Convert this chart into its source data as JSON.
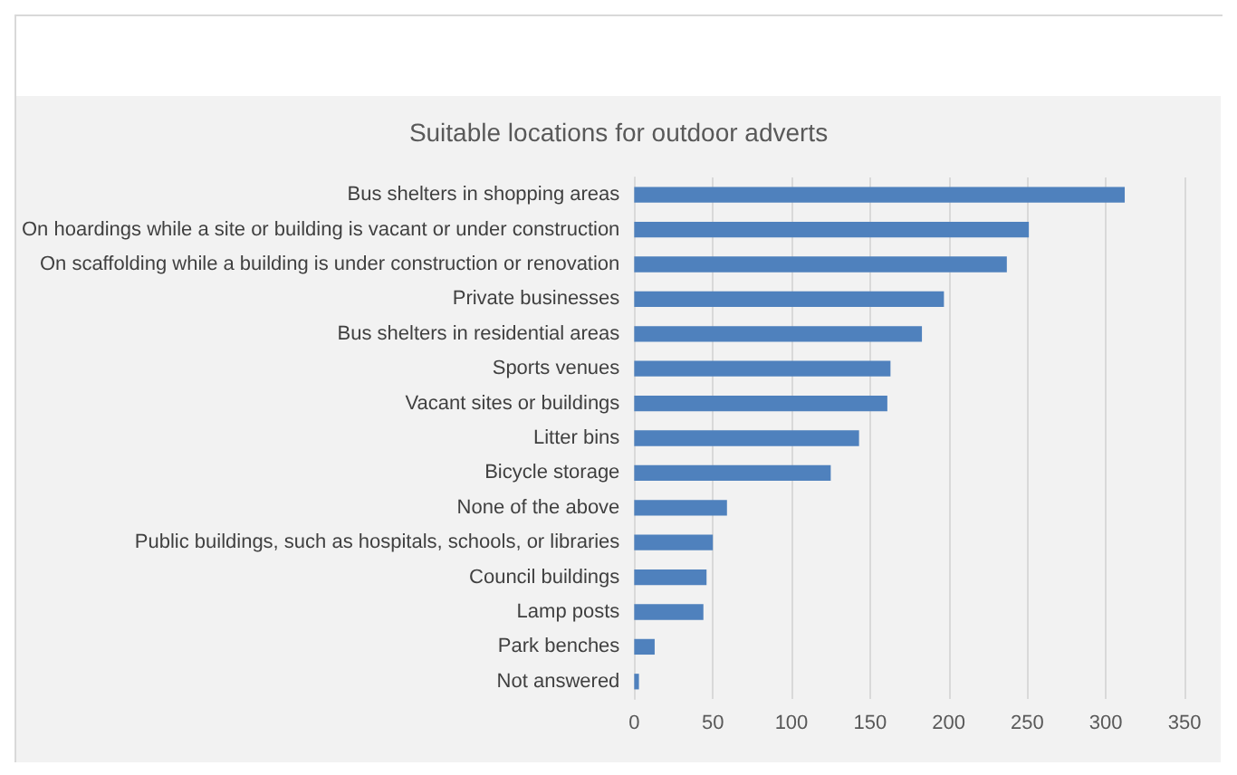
{
  "chart_data": {
    "type": "bar",
    "orientation": "horizontal",
    "title": "Suitable locations for outdoor adverts",
    "categories": [
      "Bus shelters in shopping areas",
      "On hoardings while a site or building is vacant or under construction",
      "On scaffolding while a building is under construction or renovation",
      "Private businesses",
      "Bus shelters in residential areas",
      "Sports venues",
      "Vacant sites or buildings",
      "Litter bins",
      "Bicycle storage",
      "None of the above",
      "Public buildings, such as hospitals, schools, or libraries",
      "Council buildings",
      "Lamp posts",
      "Park benches",
      "Not answered"
    ],
    "values": [
      312,
      251,
      237,
      197,
      183,
      163,
      161,
      143,
      125,
      59,
      50,
      46,
      44,
      13,
      3
    ],
    "color": "#4f81bd",
    "xlim": [
      0,
      350
    ],
    "xticks": [
      0,
      50,
      100,
      150,
      200,
      250,
      300,
      350
    ],
    "grid": "x"
  }
}
